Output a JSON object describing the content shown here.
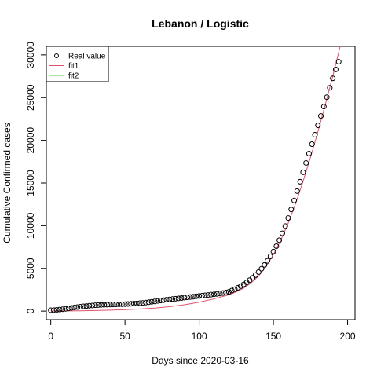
{
  "chart_data": {
    "type": "scatter",
    "title": "Lebanon / Logistic",
    "xlabel": "Days since 2020-03-16",
    "ylabel": "Cumulative Confirmed cases",
    "xlim": [
      -3,
      205
    ],
    "ylim": [
      -1000,
      31000
    ],
    "x_ticks": [
      0,
      50,
      100,
      150,
      200
    ],
    "y_ticks": [
      0,
      5000,
      10000,
      15000,
      20000,
      25000,
      30000
    ],
    "grid": false,
    "legend_position": "top-left",
    "legend": [
      {
        "label": "Real value",
        "kind": "point",
        "color": "#000000"
      },
      {
        "label": "fit1",
        "kind": "line",
        "color": "#df536b"
      },
      {
        "label": "fit2",
        "kind": "line",
        "color": "#61d04f"
      }
    ],
    "series": [
      {
        "name": "Real value",
        "kind": "points",
        "color": "#000000",
        "x": [
          0,
          2,
          4,
          6,
          8,
          10,
          12,
          14,
          16,
          18,
          20,
          22,
          24,
          26,
          28,
          30,
          32,
          34,
          36,
          38,
          40,
          42,
          44,
          46,
          48,
          50,
          52,
          54,
          56,
          58,
          60,
          62,
          64,
          66,
          68,
          70,
          72,
          74,
          76,
          78,
          80,
          82,
          84,
          86,
          88,
          90,
          92,
          94,
          96,
          98,
          100,
          102,
          104,
          106,
          108,
          110,
          112,
          114,
          116,
          118,
          120,
          122,
          124,
          126,
          128,
          130,
          132,
          134,
          136,
          138,
          140,
          142,
          144,
          146,
          148,
          150,
          152,
          154,
          156,
          158,
          160,
          162,
          164,
          166,
          168,
          170,
          172,
          174,
          176,
          178,
          180,
          182,
          184,
          186,
          188,
          190,
          192,
          194
        ],
        "y": [
          100,
          120,
          150,
          180,
          220,
          260,
          320,
          380,
          430,
          470,
          520,
          560,
          600,
          630,
          660,
          690,
          710,
          730,
          745,
          760,
          770,
          780,
          790,
          800,
          810,
          820,
          840,
          860,
          880,
          900,
          930,
          960,
          1000,
          1040,
          1090,
          1140,
          1190,
          1240,
          1290,
          1330,
          1370,
          1410,
          1450,
          1490,
          1530,
          1570,
          1610,
          1650,
          1690,
          1730,
          1770,
          1810,
          1850,
          1890,
          1930,
          1970,
          2010,
          2060,
          2110,
          2170,
          2250,
          2400,
          2560,
          2730,
          2920,
          3130,
          3360,
          3620,
          3900,
          4220,
          4570,
          4960,
          5400,
          5880,
          6400,
          6970,
          7600,
          8300,
          9100,
          9950,
          10900,
          11900,
          12950,
          14050,
          15150,
          16250,
          17350,
          18450,
          19550,
          20650,
          21750,
          22850,
          23950,
          25050,
          26150,
          27250,
          28300,
          29200
        ]
      },
      {
        "name": "fit1",
        "kind": "line",
        "color": "#df536b",
        "x": [
          0,
          10,
          20,
          30,
          40,
          50,
          60,
          70,
          80,
          90,
          100,
          110,
          120,
          125,
          130,
          135,
          140,
          145,
          150,
          155,
          160,
          165,
          170,
          175,
          180,
          185,
          190,
          195
        ],
        "y": [
          10,
          20,
          40,
          70,
          110,
          170,
          250,
          360,
          520,
          750,
          1050,
          1430,
          1900,
          2250,
          2700,
          3300,
          4100,
          5200,
          6600,
          8300,
          10300,
          12600,
          15200,
          18000,
          21000,
          24200,
          27500,
          31000
        ]
      },
      {
        "name": "fit2",
        "kind": "line",
        "color": "#61d04f",
        "x": [],
        "y": []
      }
    ]
  }
}
